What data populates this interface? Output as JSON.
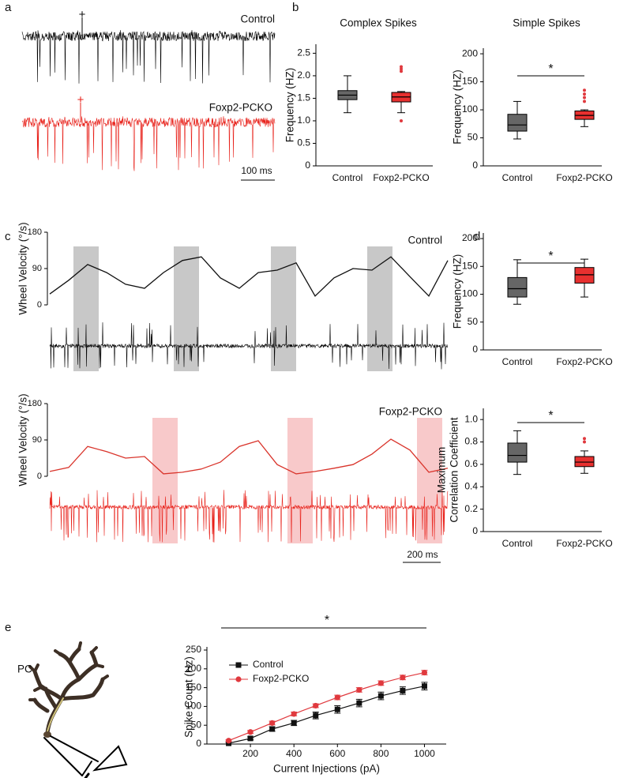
{
  "labels": {
    "panels": [
      "a",
      "b",
      "c",
      "d",
      "e"
    ],
    "trace_control": "Control",
    "trace_mutant": "Foxp2-PCKO",
    "markers": [
      "+",
      "+"
    ],
    "scale_a": "100 ms",
    "scale_c": "200 ms",
    "cell": "PC"
  },
  "chart_data": [
    {
      "type": "box",
      "title": "Complex Spikes",
      "ylabel": [
        "Frequency (HZ)"
      ],
      "categories": [
        "Control",
        "Foxp2-PCKO"
      ],
      "ylim": [
        0,
        2.7
      ],
      "yticks": [
        0,
        0.5,
        {
          "value": 1,
          "label": "1.0"
        },
        1.5,
        {
          "value": 2,
          "label": "2.0"
        },
        2.5
      ],
      "boxes": [
        {
          "color": "#666666",
          "whisker_low": 1.18,
          "q1": 1.47,
          "median": 1.57,
          "q3": 1.67,
          "whisker_high": 2.0,
          "outliers": []
        },
        {
          "color": "#e8302f",
          "whisker_low": 1.18,
          "q1": 1.42,
          "median": 1.53,
          "q3": 1.63,
          "whisker_high": 1.65,
          "outliers": [
            2.1,
            2.15,
            2.2,
            1.0
          ]
        }
      ]
    },
    {
      "type": "box",
      "title": "Simple Spikes",
      "ylabel": [
        "Frequency (HZ)"
      ],
      "categories": [
        "Control",
        "Foxp2-PCKO"
      ],
      "ylim": [
        0,
        210
      ],
      "yticks": [
        0,
        50,
        100,
        150,
        200
      ],
      "significance": "*",
      "boxes": [
        {
          "color": "#666666",
          "whisker_low": 48,
          "q1": 62,
          "median": 73,
          "q3": 92,
          "whisker_high": 115,
          "outliers": []
        },
        {
          "color": "#e8302f",
          "whisker_low": 70,
          "q1": 83,
          "median": 90,
          "q3": 98,
          "whisker_high": 100,
          "outliers": [
            115,
            122,
            128,
            135
          ]
        }
      ]
    },
    {
      "type": "wheel",
      "label": "Control",
      "ylabel": "Wheel Velocity (°/s)",
      "color": "#111111",
      "x": [
        0,
        100,
        200,
        300,
        400,
        500,
        600,
        700,
        800,
        900,
        1000,
        1100,
        1200,
        1300,
        1400,
        1500,
        1600,
        1700,
        1800,
        1900,
        2000,
        2100
      ],
      "values": [
        27,
        61,
        100,
        80,
        51,
        41,
        80,
        110,
        119,
        67,
        41,
        80,
        86,
        104,
        22,
        67,
        90,
        86,
        119,
        70,
        22,
        110
      ],
      "xlim": [
        0,
        2100
      ],
      "ylim": [
        0,
        180
      ],
      "yticks": [
        0,
        90,
        180
      ]
    },
    {
      "type": "wheel",
      "label": "Foxp2-PCKO",
      "ylabel": "Wheel Velocity (°/s)",
      "color": "#d9342b",
      "x": [
        0,
        100,
        200,
        300,
        400,
        500,
        600,
        700,
        800,
        900,
        1000,
        1100,
        1200,
        1300,
        1400,
        1500,
        1600,
        1700,
        1800,
        1900,
        2000,
        2100
      ],
      "values": [
        12,
        22,
        74,
        61,
        45,
        49,
        6,
        10,
        18,
        35,
        74,
        88,
        29,
        6,
        12,
        20,
        29,
        55,
        92,
        65,
        10,
        20
      ],
      "xlim": [
        0,
        2100
      ],
      "ylim": [
        0,
        180
      ],
      "yticks": [
        0,
        90,
        180
      ]
    },
    {
      "type": "box",
      "ylabel": [
        "Frequency (HZ)"
      ],
      "categories": [
        "Control",
        "Foxp2-PCKO"
      ],
      "ylim": [
        0,
        210
      ],
      "yticks": [
        0,
        50,
        100,
        150,
        200
      ],
      "significance": "*",
      "boxes": [
        {
          "color": "#666666",
          "whisker_low": 82,
          "q1": 95,
          "median": 110,
          "q3": 130,
          "whisker_high": 162,
          "outliers": []
        },
        {
          "color": "#e8302f",
          "whisker_low": 95,
          "q1": 120,
          "median": 135,
          "q3": 148,
          "whisker_high": 163,
          "outliers": []
        }
      ]
    },
    {
      "type": "box",
      "ylabel": [
        "Maximum",
        "Correlation Coefficient"
      ],
      "categories": [
        "Control",
        "Foxp2-PCKO"
      ],
      "ylim": [
        0,
        1.1
      ],
      "yticks": [
        0,
        0.2,
        0.4,
        0.6,
        0.8,
        {
          "value": 1,
          "label": "1.0"
        }
      ],
      "significance": "*",
      "boxes": [
        {
          "color": "#666666",
          "whisker_low": 0.51,
          "q1": 0.62,
          "median": 0.68,
          "q3": 0.79,
          "whisker_high": 0.9,
          "outliers": []
        },
        {
          "color": "#e8302f",
          "whisker_low": 0.52,
          "q1": 0.58,
          "median": 0.62,
          "q3": 0.67,
          "whisker_high": 0.72,
          "outliers": [
            0.8,
            0.83
          ]
        }
      ]
    },
    {
      "type": "errline",
      "xlabel": "Current Injections (pA)",
      "ylabel": "Spike Count (Hz)",
      "significance": "*",
      "legend": "top-left",
      "x": [
        100,
        200,
        300,
        400,
        500,
        600,
        700,
        800,
        900,
        1000
      ],
      "xlim": [
        0,
        1100
      ],
      "xticks": [
        200,
        400,
        600,
        800,
        1000
      ],
      "ylim": [
        0,
        250
      ],
      "yticks": [
        0,
        50,
        100,
        150,
        200,
        250
      ],
      "series": [
        {
          "name": "Control",
          "color": "#111111",
          "marker": "square",
          "values": [
            2,
            15,
            40,
            56,
            76,
            92,
            109,
            128,
            142,
            154
          ],
          "errors": [
            2,
            4,
            6,
            7,
            9,
            10,
            10,
            10,
            10,
            10
          ]
        },
        {
          "name": "Foxp2-PCKO",
          "color": "#e0393e",
          "marker": "circle",
          "values": [
            9,
            32,
            56,
            80,
            102,
            124,
            144,
            162,
            177,
            190
          ],
          "errors": [
            2,
            4,
            5,
            5,
            5,
            6,
            6,
            6,
            6,
            6
          ]
        }
      ]
    }
  ]
}
